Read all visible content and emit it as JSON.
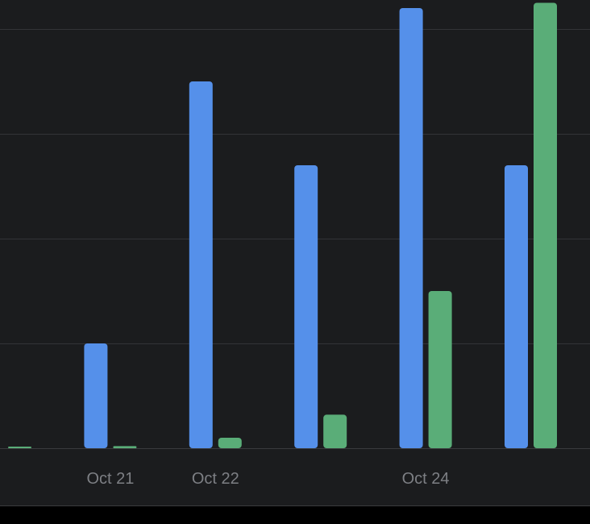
{
  "chart_data": {
    "type": "bar",
    "categories": [
      "",
      "Oct 21",
      "Oct 22",
      "",
      "Oct 24",
      ""
    ],
    "series": [
      {
        "values": [
          null,
          10,
          35,
          27,
          42,
          27
        ],
        "color": "#5590ea"
      },
      {
        "values": [
          0.1,
          0.2,
          1,
          3.2,
          15,
          42.5
        ],
        "color": "#5aad78"
      }
    ],
    "ylim": [
      0,
      42
    ],
    "grid": true,
    "legend": "none"
  }
}
